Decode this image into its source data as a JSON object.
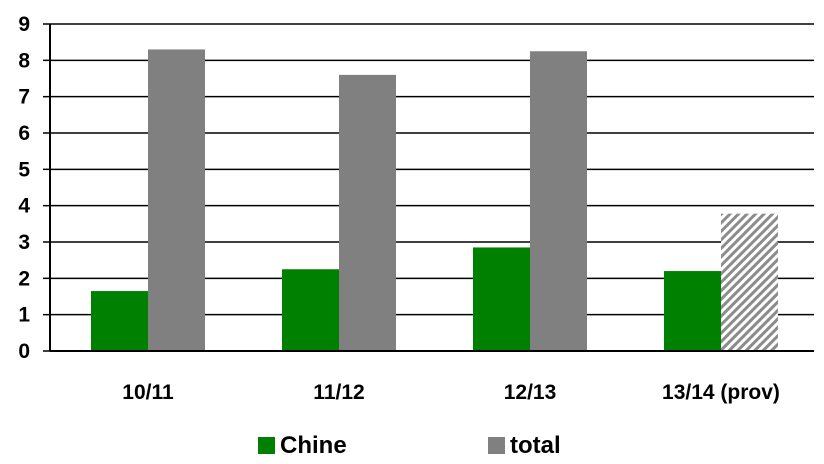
{
  "chart_data": {
    "type": "bar",
    "title": "",
    "xlabel": "",
    "ylabel": "",
    "categories": [
      "10/11",
      "11/12",
      "12/13",
      "13/14 (prov)"
    ],
    "series": [
      {
        "name": "Chine",
        "color": "#008000",
        "values": [
          1.65,
          2.25,
          2.85,
          2.2
        ],
        "provisional": [
          false,
          false,
          false,
          false
        ]
      },
      {
        "name": "total",
        "color": "#808080",
        "values": [
          8.3,
          7.6,
          8.25,
          3.78
        ],
        "provisional": [
          false,
          false,
          false,
          true
        ]
      }
    ],
    "ylim": [
      0,
      9
    ],
    "yticks": [
      "0",
      "1",
      "2",
      "3",
      "4",
      "5",
      "6",
      "7",
      "8",
      "9"
    ],
    "grid": true,
    "legend_position": "bottom"
  }
}
